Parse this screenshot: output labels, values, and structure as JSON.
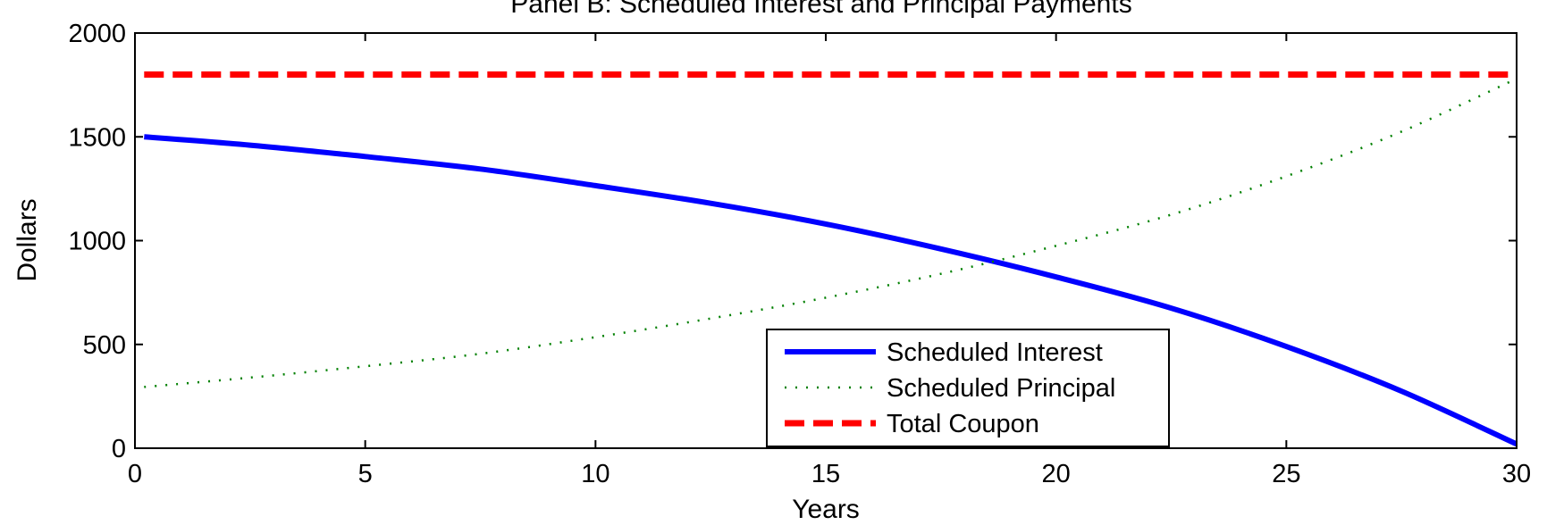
{
  "chart_data": {
    "type": "line",
    "title": "Panel B: Scheduled Interest and Principal Payments",
    "xlabel": "Years",
    "ylabel": "Dollars",
    "xlim": [
      0,
      30
    ],
    "ylim": [
      0,
      2000
    ],
    "xticks": [
      0,
      5,
      10,
      15,
      20,
      25,
      30
    ],
    "yticks": [
      0,
      500,
      1000,
      1500,
      2000
    ],
    "xtick_labels": [
      "0",
      "5",
      "10",
      "15",
      "20",
      "25",
      "30"
    ],
    "ytick_labels": [
      "0",
      "500",
      "1000",
      "1500",
      "2000"
    ],
    "grid": false,
    "legend_position": "bottom-center",
    "x": [
      0.2,
      2.5,
      5,
      7.5,
      10,
      12.5,
      15,
      17.5,
      20,
      22.5,
      25,
      27.5,
      30
    ],
    "series": [
      {
        "name": "Scheduled Interest",
        "color": "#0000ff",
        "style": "solid",
        "values": [
          1500,
          1460,
          1405,
          1345,
          1265,
          1180,
          1080,
          960,
          825,
          675,
          490,
          275,
          20
        ]
      },
      {
        "name": "Scheduled Principal",
        "color": "#008000",
        "style": "dotted",
        "values": [
          295,
          340,
          395,
          455,
          535,
          625,
          725,
          840,
          975,
          1125,
          1310,
          1525,
          1780
        ]
      },
      {
        "name": "Total Coupon",
        "color": "#ff0000",
        "style": "dashed",
        "values": [
          1800,
          1800,
          1800,
          1800,
          1800,
          1800,
          1800,
          1800,
          1800,
          1800,
          1800,
          1800,
          1800
        ]
      }
    ]
  }
}
